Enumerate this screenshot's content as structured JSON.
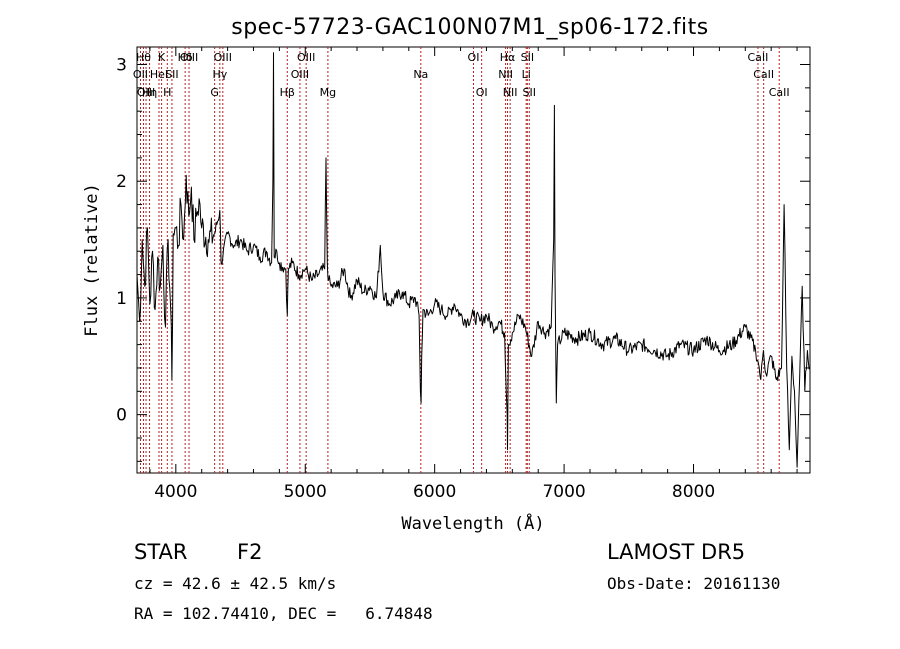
{
  "chart_data": {
    "type": "line",
    "title": "spec-57723-GAC100N07M1_sp06-172.fits",
    "xlabel": "Wavelength (Å)",
    "ylabel": "Flux (relative)",
    "xlim": [
      3700,
      8900
    ],
    "ylim": [
      -0.5,
      3.15
    ],
    "xticks": [
      {
        "value": 4000,
        "label": "4000"
      },
      {
        "value": 5000,
        "label": "5000"
      },
      {
        "value": 6000,
        "label": "6000"
      },
      {
        "value": 7000,
        "label": "7000"
      },
      {
        "value": 8000,
        "label": "8000"
      }
    ],
    "yticks": [
      {
        "value": 0,
        "label": "0"
      },
      {
        "value": 1,
        "label": "1"
      },
      {
        "value": 2,
        "label": "2"
      },
      {
        "value": 3,
        "label": "3"
      }
    ],
    "spectrum_color": "#000000",
    "line_marker_color": "#b22222",
    "series": [
      {
        "x": [
          3700,
          3720,
          3740,
          3760,
          3780,
          3800,
          3820,
          3840,
          3860,
          3880,
          3900,
          3920,
          3940,
          3960,
          3970,
          3980,
          4000,
          4020,
          4040,
          4060,
          4080,
          4100,
          4120,
          4140,
          4160,
          4180,
          4200,
          4250,
          4300,
          4340,
          4350,
          4400,
          4450,
          4500,
          4550,
          4600,
          4650,
          4700,
          4740,
          4750,
          4755,
          4760,
          4780,
          4800,
          4850,
          4861,
          4870,
          4900,
          4950,
          5000,
          5050,
          5100,
          5150,
          5160,
          5170,
          5180,
          5200,
          5250,
          5300,
          5350,
          5400,
          5450,
          5500,
          5550,
          5580,
          5600,
          5650,
          5700,
          5750,
          5800,
          5850,
          5880,
          5890,
          5895,
          5900,
          5910,
          5950,
          6000,
          6050,
          6100,
          6150,
          6200,
          6250,
          6300,
          6350,
          6400,
          6450,
          6500,
          6540,
          6560,
          6563,
          6570,
          6600,
          6650,
          6700,
          6750,
          6800,
          6850,
          6900,
          6920,
          6925,
          6930,
          6940,
          6950,
          7000,
          7100,
          7200,
          7300,
          7400,
          7500,
          7600,
          7700,
          7800,
          7900,
          8000,
          8100,
          8200,
          8300,
          8400,
          8480,
          8500,
          8520,
          8540,
          8560,
          8600,
          8640,
          8680,
          8700,
          8720,
          8740,
          8760,
          8780,
          8800,
          8820,
          8840,
          8860,
          8880,
          8900
        ],
        "y": [
          1.2,
          0.8,
          1.5,
          1.1,
          1.6,
          0.95,
          1.4,
          0.9,
          1.35,
          1.1,
          1.45,
          0.75,
          1.5,
          0.9,
          0.3,
          1.55,
          1.6,
          1.45,
          1.8,
          1.5,
          2.05,
          1.7,
          1.95,
          1.5,
          1.7,
          1.85,
          1.6,
          1.5,
          1.55,
          1.75,
          1.3,
          1.55,
          1.45,
          1.5,
          1.4,
          1.45,
          1.35,
          1.4,
          1.3,
          2.0,
          3.1,
          1.35,
          1.4,
          1.3,
          1.25,
          0.85,
          1.25,
          1.3,
          1.2,
          1.25,
          1.15,
          1.2,
          1.25,
          2.2,
          1.3,
          1.15,
          1.1,
          1.1,
          1.25,
          1.0,
          1.15,
          1.05,
          1.1,
          1.0,
          1.45,
          1.05,
          0.95,
          1.0,
          1.05,
          0.95,
          1.0,
          0.85,
          0.2,
          0.1,
          0.5,
          0.9,
          0.85,
          0.95,
          0.9,
          0.85,
          0.95,
          0.85,
          0.8,
          0.85,
          0.8,
          0.85,
          0.75,
          0.8,
          0.7,
          0.0,
          -0.3,
          0.6,
          0.7,
          0.85,
          0.75,
          0.5,
          0.8,
          0.7,
          0.75,
          1.5,
          2.65,
          1.2,
          0.1,
          0.6,
          0.7,
          0.65,
          0.7,
          0.6,
          0.65,
          0.55,
          0.6,
          0.55,
          0.5,
          0.6,
          0.55,
          0.65,
          0.55,
          0.6,
          0.75,
          0.55,
          0.45,
          0.3,
          0.55,
          0.35,
          0.5,
          0.3,
          0.4,
          1.8,
          0.4,
          -0.3,
          0.5,
          0.2,
          -0.45,
          0.3,
          1.1,
          0.2,
          0.55,
          0.4
        ]
      }
    ],
    "lines": [
      {
        "wave": 3727,
        "label": "OII",
        "row": 1
      },
      {
        "wave": 3750,
        "label": "Hθ",
        "row": 0
      },
      {
        "wave": 3770,
        "label": "OIII",
        "row": 2
      },
      {
        "wave": 3797,
        "label": "Hη",
        "row": 2
      },
      {
        "wave": 3870,
        "label": "HeI",
        "row": 1
      },
      {
        "wave": 3890,
        "label": "K",
        "row": 0
      },
      {
        "wave": 3934,
        "label": "H",
        "row": 2
      },
      {
        "wave": 3970,
        "label": "SII",
        "row": 1
      },
      {
        "wave": 4072,
        "label": "Hδ",
        "row": 0
      },
      {
        "wave": 4102,
        "label": "OIII",
        "row": 0
      },
      {
        "wave": 4300,
        "label": "G",
        "row": 2
      },
      {
        "wave": 4340,
        "label": "Hγ",
        "row": 1
      },
      {
        "wave": 4363,
        "label": "OIII",
        "row": 0
      },
      {
        "wave": 4861,
        "label": "Hβ",
        "row": 2
      },
      {
        "wave": 4959,
        "label": "OIII",
        "row": 1
      },
      {
        "wave": 5007,
        "label": "OIII",
        "row": 0
      },
      {
        "wave": 5175,
        "label": "Mg",
        "row": 2
      },
      {
        "wave": 5893,
        "label": "Na",
        "row": 1
      },
      {
        "wave": 6300,
        "label": "OI",
        "row": 0
      },
      {
        "wave": 6363,
        "label": "OI",
        "row": 2
      },
      {
        "wave": 6548,
        "label": "NII",
        "row": 1
      },
      {
        "wave": 6563,
        "label": "Hα",
        "row": 0
      },
      {
        "wave": 6583,
        "label": "NII",
        "row": 2
      },
      {
        "wave": 6707,
        "label": "Li",
        "row": 1
      },
      {
        "wave": 6716,
        "label": "SII",
        "row": 0
      },
      {
        "wave": 6731,
        "label": "SII",
        "row": 2
      },
      {
        "wave": 8498,
        "label": "CaII",
        "row": 0
      },
      {
        "wave": 8542,
        "label": "CaII",
        "row": 1
      },
      {
        "wave": 8662,
        "label": "CaII",
        "row": 2
      }
    ]
  },
  "info": {
    "class": "STAR",
    "subclass": "F2",
    "survey": "LAMOST DR5",
    "velocity": "cz = 42.6 ± 42.5 km/s",
    "obs_date": "Obs-Date: 20161130",
    "coords": "RA = 102.74410, DEC =   6.74848"
  }
}
